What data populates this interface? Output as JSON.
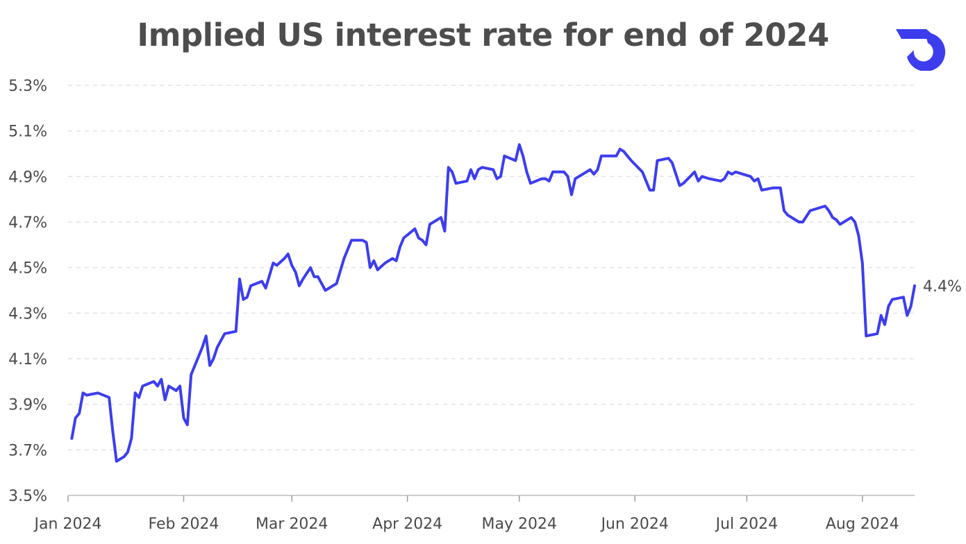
{
  "title": "Implied US interest rate for end of 2024",
  "logo_icon": "brand-logo-icon",
  "colors": {
    "line": "#3d3ded",
    "grid": "#e3e3e3",
    "text": "#4a4a4a",
    "logo": "#3d3ded"
  },
  "chart_data": {
    "type": "line",
    "title": "Implied US interest rate for end of 2024",
    "xlabel": "",
    "ylabel": "",
    "ylim": [
      3.5,
      5.3
    ],
    "yticks": [
      3.5,
      3.7,
      3.9,
      4.1,
      4.3,
      4.5,
      4.7,
      4.9,
      5.1,
      5.3
    ],
    "ytick_labels": [
      "3.5%",
      "3.7%",
      "3.9%",
      "4.1%",
      "4.3%",
      "4.5%",
      "4.7%",
      "4.9%",
      "5.1%",
      "5.3%"
    ],
    "xlim": [
      "2024-01-02",
      "2024-08-15"
    ],
    "xticks": [
      "2024-01-01",
      "2024-02-01",
      "2024-03-01",
      "2024-04-01",
      "2024-05-01",
      "2024-06-01",
      "2024-07-01",
      "2024-08-01"
    ],
    "xtick_labels": [
      "Jan 2024",
      "Feb 2024",
      "Mar 2024",
      "Apr 2024",
      "May 2024",
      "Jun 2024",
      "Jul 2024",
      "Aug 2024"
    ],
    "grid": true,
    "end_label": "4.4%",
    "series": [
      {
        "points": [
          [
            "2024-01-02",
            3.75
          ],
          [
            "2024-01-03",
            3.84
          ],
          [
            "2024-01-04",
            3.86
          ],
          [
            "2024-01-05",
            3.95
          ],
          [
            "2024-01-06",
            3.94
          ],
          [
            "2024-01-09",
            3.95
          ],
          [
            "2024-01-12",
            3.93
          ],
          [
            "2024-01-13",
            3.78
          ],
          [
            "2024-01-14",
            3.65
          ],
          [
            "2024-01-16",
            3.67
          ],
          [
            "2024-01-17",
            3.69
          ],
          [
            "2024-01-18",
            3.75
          ],
          [
            "2024-01-19",
            3.95
          ],
          [
            "2024-01-20",
            3.93
          ],
          [
            "2024-01-21",
            3.98
          ],
          [
            "2024-01-24",
            4.0
          ],
          [
            "2024-01-25",
            3.98
          ],
          [
            "2024-01-26",
            4.01
          ],
          [
            "2024-01-27",
            3.92
          ],
          [
            "2024-01-28",
            3.98
          ],
          [
            "2024-01-30",
            3.96
          ],
          [
            "2024-01-31",
            3.98
          ],
          [
            "2024-02-01",
            3.84
          ],
          [
            "2024-02-02",
            3.81
          ],
          [
            "2024-02-03",
            4.03
          ],
          [
            "2024-02-06",
            4.15
          ],
          [
            "2024-02-07",
            4.2
          ],
          [
            "2024-02-08",
            4.07
          ],
          [
            "2024-02-09",
            4.1
          ],
          [
            "2024-02-10",
            4.15
          ],
          [
            "2024-02-12",
            4.21
          ],
          [
            "2024-02-15",
            4.22
          ],
          [
            "2024-02-16",
            4.45
          ],
          [
            "2024-02-17",
            4.36
          ],
          [
            "2024-02-18",
            4.37
          ],
          [
            "2024-02-19",
            4.42
          ],
          [
            "2024-02-22",
            4.44
          ],
          [
            "2024-02-23",
            4.41
          ],
          [
            "2024-02-25",
            4.52
          ],
          [
            "2024-02-26",
            4.51
          ],
          [
            "2024-02-28",
            4.54
          ],
          [
            "2024-02-29",
            4.56
          ],
          [
            "2024-03-01",
            4.51
          ],
          [
            "2024-03-02",
            4.48
          ],
          [
            "2024-03-03",
            4.42
          ],
          [
            "2024-03-04",
            4.45
          ],
          [
            "2024-03-06",
            4.5
          ],
          [
            "2024-03-07",
            4.46
          ],
          [
            "2024-03-08",
            4.46
          ],
          [
            "2024-03-10",
            4.4
          ],
          [
            "2024-03-13",
            4.43
          ],
          [
            "2024-03-15",
            4.54
          ],
          [
            "2024-03-17",
            4.62
          ],
          [
            "2024-03-20",
            4.62
          ],
          [
            "2024-03-21",
            4.61
          ],
          [
            "2024-03-22",
            4.5
          ],
          [
            "2024-03-23",
            4.53
          ],
          [
            "2024-03-24",
            4.49
          ],
          [
            "2024-03-26",
            4.52
          ],
          [
            "2024-03-27",
            4.53
          ],
          [
            "2024-03-28",
            4.54
          ],
          [
            "2024-03-29",
            4.53
          ],
          [
            "2024-03-30",
            4.59
          ],
          [
            "2024-03-31",
            4.63
          ],
          [
            "2024-04-03",
            4.67
          ],
          [
            "2024-04-04",
            4.63
          ],
          [
            "2024-04-05",
            4.62
          ],
          [
            "2024-04-06",
            4.6
          ],
          [
            "2024-04-07",
            4.69
          ],
          [
            "2024-04-10",
            4.72
          ],
          [
            "2024-04-11",
            4.66
          ],
          [
            "2024-04-12",
            4.94
          ],
          [
            "2024-04-13",
            4.92
          ],
          [
            "2024-04-14",
            4.87
          ],
          [
            "2024-04-17",
            4.88
          ],
          [
            "2024-04-18",
            4.93
          ],
          [
            "2024-04-19",
            4.89
          ],
          [
            "2024-04-20",
            4.93
          ],
          [
            "2024-04-21",
            4.94
          ],
          [
            "2024-04-24",
            4.93
          ],
          [
            "2024-04-25",
            4.89
          ],
          [
            "2024-04-26",
            4.9
          ],
          [
            "2024-04-27",
            4.99
          ],
          [
            "2024-04-30",
            4.97
          ],
          [
            "2024-05-01",
            5.04
          ],
          [
            "2024-05-02",
            4.99
          ],
          [
            "2024-05-03",
            4.92
          ],
          [
            "2024-05-04",
            4.87
          ],
          [
            "2024-05-07",
            4.89
          ],
          [
            "2024-05-08",
            4.89
          ],
          [
            "2024-05-09",
            4.88
          ],
          [
            "2024-05-10",
            4.92
          ],
          [
            "2024-05-13",
            4.92
          ],
          [
            "2024-05-14",
            4.9
          ],
          [
            "2024-05-15",
            4.82
          ],
          [
            "2024-05-16",
            4.89
          ],
          [
            "2024-05-17",
            4.9
          ],
          [
            "2024-05-20",
            4.93
          ],
          [
            "2024-05-21",
            4.91
          ],
          [
            "2024-05-22",
            4.93
          ],
          [
            "2024-05-23",
            4.99
          ],
          [
            "2024-05-27",
            4.99
          ],
          [
            "2024-05-28",
            5.02
          ],
          [
            "2024-05-29",
            5.01
          ],
          [
            "2024-05-30",
            4.99
          ],
          [
            "2024-05-31",
            4.97
          ],
          [
            "2024-06-03",
            4.92
          ],
          [
            "2024-06-05",
            4.84
          ],
          [
            "2024-06-06",
            4.84
          ],
          [
            "2024-06-07",
            4.97
          ],
          [
            "2024-06-10",
            4.98
          ],
          [
            "2024-06-11",
            4.96
          ],
          [
            "2024-06-13",
            4.86
          ],
          [
            "2024-06-14",
            4.87
          ],
          [
            "2024-06-17",
            4.92
          ],
          [
            "2024-06-18",
            4.88
          ],
          [
            "2024-06-19",
            4.9
          ],
          [
            "2024-06-21",
            4.89
          ],
          [
            "2024-06-24",
            4.88
          ],
          [
            "2024-06-25",
            4.89
          ],
          [
            "2024-06-26",
            4.92
          ],
          [
            "2024-06-27",
            4.91
          ],
          [
            "2024-06-28",
            4.92
          ],
          [
            "2024-07-02",
            4.9
          ],
          [
            "2024-07-03",
            4.88
          ],
          [
            "2024-07-04",
            4.89
          ],
          [
            "2024-07-05",
            4.84
          ],
          [
            "2024-07-08",
            4.85
          ],
          [
            "2024-07-10",
            4.85
          ],
          [
            "2024-07-11",
            4.75
          ],
          [
            "2024-07-12",
            4.73
          ],
          [
            "2024-07-15",
            4.7
          ],
          [
            "2024-07-16",
            4.7
          ],
          [
            "2024-07-18",
            4.75
          ],
          [
            "2024-07-22",
            4.77
          ],
          [
            "2024-07-23",
            4.75
          ],
          [
            "2024-07-24",
            4.72
          ],
          [
            "2024-07-25",
            4.71
          ],
          [
            "2024-07-26",
            4.69
          ],
          [
            "2024-07-29",
            4.72
          ],
          [
            "2024-07-30",
            4.7
          ],
          [
            "2024-07-31",
            4.64
          ],
          [
            "2024-08-01",
            4.52
          ],
          [
            "2024-08-02",
            4.2
          ],
          [
            "2024-08-05",
            4.21
          ],
          [
            "2024-08-06",
            4.29
          ],
          [
            "2024-08-07",
            4.25
          ],
          [
            "2024-08-08",
            4.33
          ],
          [
            "2024-08-09",
            4.36
          ],
          [
            "2024-08-12",
            4.37
          ],
          [
            "2024-08-13",
            4.29
          ],
          [
            "2024-08-14",
            4.33
          ],
          [
            "2024-08-15",
            4.42
          ]
        ]
      }
    ]
  }
}
